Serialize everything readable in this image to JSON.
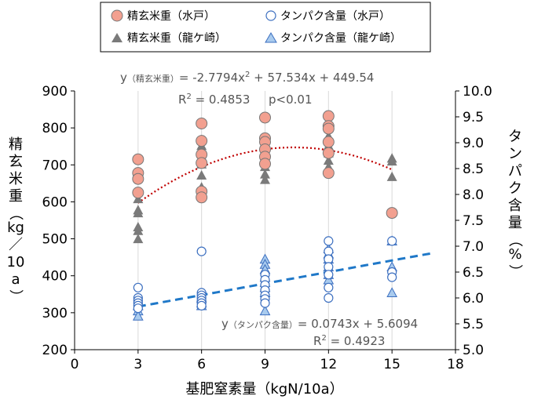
{
  "chart_data": {
    "type": "scatter",
    "xlabel": "基肥窒素量（kgN/10a）",
    "ylabel_left": [
      "精",
      "玄",
      "米",
      "重",
      "（",
      "kg",
      "／",
      "10",
      "a",
      "）"
    ],
    "ylabel_right": [
      "タ",
      "ン",
      "パ",
      "ク",
      "含",
      "量",
      "（",
      "%",
      "）"
    ],
    "xlim": [
      0,
      18
    ],
    "ylim_left": [
      200,
      900
    ],
    "ylim_right": [
      5.0,
      10.0
    ],
    "x_ticks": [
      "0",
      "3",
      "6",
      "9",
      "12",
      "15",
      "18"
    ],
    "y_left_ticks": [
      "200",
      "300",
      "400",
      "500",
      "600",
      "700",
      "800",
      "900"
    ],
    "y_right_ticks": [
      "5.0",
      "5.5",
      "6.0",
      "6.5",
      "7.0",
      "7.5",
      "8.0",
      "8.5",
      "9.0",
      "9.5",
      "10.0"
    ],
    "grid": "vertical",
    "legend_position": "top-center",
    "series": [
      {
        "name": "精玄米重（水戸）",
        "axis": "left",
        "marker": "circle",
        "color": "#f2a090",
        "edge": "#777777",
        "points": [
          [
            3,
            715
          ],
          [
            3,
            678
          ],
          [
            3,
            662
          ],
          [
            3,
            625
          ],
          [
            6,
            812
          ],
          [
            6,
            765
          ],
          [
            6,
            728
          ],
          [
            6,
            705
          ],
          [
            6,
            628
          ],
          [
            6,
            612
          ],
          [
            9,
            828
          ],
          [
            9,
            772
          ],
          [
            9,
            762
          ],
          [
            9,
            742
          ],
          [
            9,
            722
          ],
          [
            9,
            703
          ],
          [
            12,
            832
          ],
          [
            12,
            805
          ],
          [
            12,
            798
          ],
          [
            12,
            762
          ],
          [
            12,
            732
          ],
          [
            12,
            678
          ],
          [
            15,
            570
          ]
        ]
      },
      {
        "name": "精玄米重（龍ケ崎）",
        "axis": "left",
        "marker": "triangle",
        "color": "#7a7a7a",
        "edge": "#7a7a7a",
        "points": [
          [
            3,
            608
          ],
          [
            3,
            578
          ],
          [
            3,
            570
          ],
          [
            3,
            532
          ],
          [
            3,
            522
          ],
          [
            3,
            500
          ],
          [
            6,
            768
          ],
          [
            6,
            752
          ],
          [
            6,
            702
          ],
          [
            6,
            672
          ],
          [
            6,
            640
          ],
          [
            6,
            632
          ],
          [
            6,
            622
          ],
          [
            9,
            752
          ],
          [
            9,
            738
          ],
          [
            9,
            728
          ],
          [
            9,
            695
          ],
          [
            9,
            675
          ],
          [
            9,
            660
          ],
          [
            12,
            778
          ],
          [
            12,
            752
          ],
          [
            12,
            732
          ],
          [
            12,
            712
          ],
          [
            12,
            695
          ],
          [
            15,
            718
          ],
          [
            15,
            710
          ],
          [
            15,
            668
          ]
        ]
      },
      {
        "name": "タンパク含量（水戸）",
        "axis": "right",
        "marker": "circle-open",
        "color": "#ffffff",
        "edge": "#3c6fc0",
        "points": [
          [
            3,
            6.2
          ],
          [
            3,
            6.0
          ],
          [
            3,
            5.95
          ],
          [
            3,
            5.9
          ],
          [
            3,
            5.85
          ],
          [
            3,
            5.8
          ],
          [
            6,
            6.9
          ],
          [
            6,
            6.1
          ],
          [
            6,
            6.05
          ],
          [
            6,
            6.0
          ],
          [
            6,
            5.95
          ],
          [
            6,
            5.9
          ],
          [
            6,
            5.85
          ],
          [
            9,
            6.45
          ],
          [
            9,
            6.35
          ],
          [
            9,
            6.25
          ],
          [
            9,
            6.15
          ],
          [
            9,
            6.05
          ],
          [
            9,
            5.98
          ],
          [
            9,
            5.9
          ],
          [
            12,
            7.1
          ],
          [
            12,
            6.9
          ],
          [
            12,
            6.75
          ],
          [
            12,
            6.6
          ],
          [
            12,
            6.45
          ],
          [
            12,
            6.2
          ],
          [
            12,
            6.0
          ],
          [
            15,
            7.1
          ],
          [
            15,
            6.5
          ],
          [
            15,
            6.4
          ]
        ]
      },
      {
        "name": "タンパク含量（龍ケ崎）",
        "axis": "right",
        "marker": "triangle",
        "color": "#a9cbee",
        "edge": "#3c6fc0",
        "points": [
          [
            3,
            5.85
          ],
          [
            3,
            5.75
          ],
          [
            3,
            5.65
          ],
          [
            6,
            6.0
          ],
          [
            6,
            5.9
          ],
          [
            6,
            5.85
          ],
          [
            9,
            6.75
          ],
          [
            9,
            6.65
          ],
          [
            9,
            6.55
          ],
          [
            9,
            6.4
          ],
          [
            9,
            6.3
          ],
          [
            9,
            6.2
          ],
          [
            9,
            6.1
          ],
          [
            9,
            5.75
          ],
          [
            12,
            6.95
          ],
          [
            12,
            6.85
          ],
          [
            12,
            6.75
          ],
          [
            12,
            6.6
          ],
          [
            12,
            6.45
          ],
          [
            12,
            6.35
          ],
          [
            15,
            7.1
          ],
          [
            15,
            6.6
          ],
          [
            15,
            6.1
          ]
        ]
      }
    ],
    "fits": [
      {
        "axis": "left",
        "style": "dotted",
        "color": "#c00000",
        "coefficients": [
          -2.7794,
          57.534,
          449.54
        ],
        "x_range": [
          3,
          15
        ],
        "equation_prefix": "y",
        "equation_series": "（精玄米重）",
        "equation_body": "= -2.7794x",
        "equation_sup": "2",
        "equation_tail": " + 57.534x + 449.54",
        "r2_label": "R",
        "r2_sup": "2",
        "r2_value": " = 0.4853",
        "p_value": "p<0.01"
      },
      {
        "axis": "right",
        "style": "dashed",
        "color": "#1f78c8",
        "coefficients": [
          0.0743,
          5.6094
        ],
        "x_range": [
          3,
          17
        ],
        "equation_prefix": "y",
        "equation_series": "（タンパク含量）",
        "equation_body": "= 0.0743x + 5.6094",
        "r2_label": "R",
        "r2_sup": "2",
        "r2_value": " = 0.4923"
      }
    ]
  }
}
